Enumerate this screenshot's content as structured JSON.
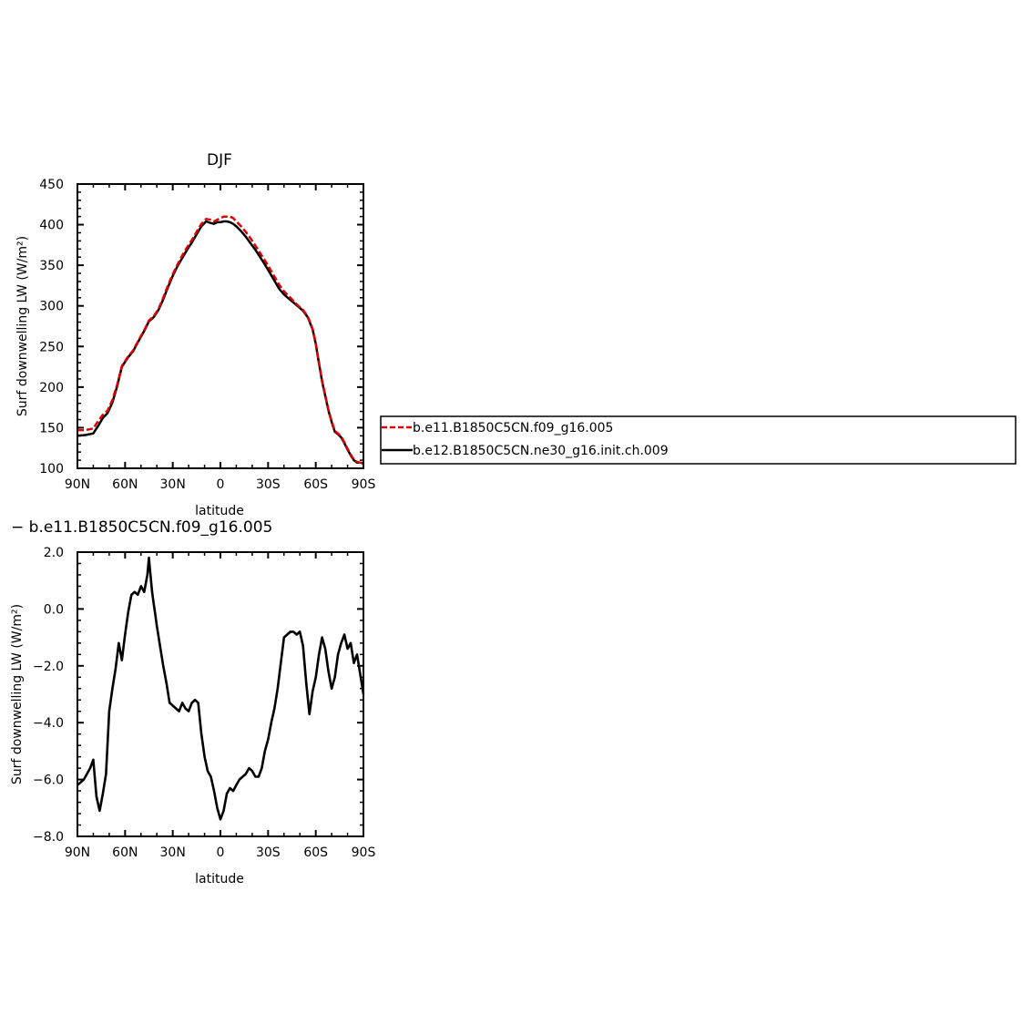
{
  "chart_data": [
    {
      "type": "line",
      "title": "DJF",
      "xlabel": "latitude",
      "ylabel": "Surf downwelling LW (W/m²)",
      "xlim": [
        90,
        -90
      ],
      "ylim": [
        100,
        450
      ],
      "x_ticks": [
        {
          "value": 90,
          "label": "90N"
        },
        {
          "value": 60,
          "label": "60N"
        },
        {
          "value": 30,
          "label": "30N"
        },
        {
          "value": 0,
          "label": "0"
        },
        {
          "value": -30,
          "label": "30S"
        },
        {
          "value": -60,
          "label": "60S"
        },
        {
          "value": -90,
          "label": "90S"
        }
      ],
      "y_ticks": [
        {
          "value": 100,
          "label": "100"
        },
        {
          "value": 150,
          "label": "150"
        },
        {
          "value": 200,
          "label": "200"
        },
        {
          "value": 250,
          "label": "250"
        },
        {
          "value": 300,
          "label": "300"
        },
        {
          "value": 350,
          "label": "350"
        },
        {
          "value": 400,
          "label": "400"
        },
        {
          "value": 450,
          "label": "450"
        }
      ],
      "grid": false,
      "legend_position": "right",
      "series": [
        {
          "name": "b.e11.B1850C5CN.f09_g16.005",
          "color": "#e00000",
          "dash": "dashed",
          "x": [
            90,
            85,
            80,
            77,
            74,
            71,
            68,
            65,
            62,
            58,
            55,
            52,
            48,
            45,
            42,
            39,
            36,
            33,
            30,
            27,
            24,
            21,
            18,
            15,
            12,
            9,
            6,
            4,
            2,
            0,
            -2,
            -4,
            -6,
            -8,
            -10,
            -13,
            -16,
            -19,
            -22,
            -25,
            -28,
            -31,
            -34,
            -37,
            -40,
            -43,
            -46,
            -49,
            -52,
            -55,
            -58,
            -60,
            -62,
            -64,
            -66,
            -68,
            -70,
            -72,
            -74,
            -76,
            -78,
            -80,
            -82,
            -84,
            -86,
            -88,
            -90
          ],
          "y": [
            147,
            147,
            149,
            158,
            166,
            171,
            184,
            203,
            226,
            238,
            245,
            256,
            270,
            282,
            287,
            296,
            310,
            325,
            339,
            351,
            362,
            372,
            381,
            391,
            401,
            407,
            406,
            404,
            406,
            408,
            410,
            410,
            410,
            408,
            404,
            398,
            391,
            383,
            374,
            365,
            356,
            346,
            336,
            326,
            318,
            312,
            306,
            300,
            295,
            287,
            272,
            254,
            230,
            208,
            190,
            172,
            158,
            146,
            143,
            139,
            132,
            124,
            117,
            111,
            108,
            107,
            106
          ]
        },
        {
          "name": "b.e12.B1850C5CN.ne30_g16.init.ch.009",
          "color": "#000000",
          "dash": "solid",
          "x": [
            90,
            85,
            80,
            77,
            74,
            71,
            68,
            65,
            62,
            58,
            55,
            52,
            48,
            45,
            42,
            39,
            36,
            33,
            30,
            27,
            24,
            21,
            18,
            15,
            12,
            9,
            6,
            4,
            2,
            0,
            -2,
            -4,
            -6,
            -8,
            -10,
            -13,
            -16,
            -19,
            -22,
            -25,
            -28,
            -31,
            -34,
            -37,
            -40,
            -43,
            -46,
            -49,
            -52,
            -55,
            -58,
            -60,
            -62,
            -64,
            -66,
            -68,
            -70,
            -72,
            -74,
            -76,
            -78,
            -80,
            -82,
            -84,
            -86,
            -88,
            -90
          ],
          "y": [
            140,
            141,
            143,
            152,
            162,
            168,
            181,
            201,
            225,
            237,
            244,
            255,
            269,
            281,
            286,
            295,
            308,
            323,
            337,
            349,
            359,
            369,
            378,
            388,
            398,
            404,
            402,
            401,
            403,
            403,
            404,
            404,
            403,
            401,
            398,
            392,
            385,
            377,
            369,
            360,
            351,
            341,
            331,
            321,
            314,
            309,
            304,
            299,
            294,
            286,
            271,
            253,
            229,
            207,
            189,
            171,
            157,
            145,
            142,
            138,
            131,
            123,
            116,
            110,
            107,
            107,
            106
          ]
        }
      ]
    },
    {
      "type": "line",
      "title": "− b.e11.B1850C5CN.f09_g16.005",
      "xlabel": "latitude",
      "ylabel": "Surf downwelling LW (W/m²)",
      "xlim": [
        90,
        -90
      ],
      "ylim": [
        -8.0,
        2.0
      ],
      "x_ticks": [
        {
          "value": 90,
          "label": "90N"
        },
        {
          "value": 60,
          "label": "60N"
        },
        {
          "value": 30,
          "label": "30N"
        },
        {
          "value": 0,
          "label": "0"
        },
        {
          "value": -30,
          "label": "30S"
        },
        {
          "value": -60,
          "label": "60S"
        },
        {
          "value": -90,
          "label": "90S"
        }
      ],
      "y_ticks": [
        {
          "value": 2.0,
          "label": "2.0"
        },
        {
          "value": 0.0,
          "label": "0.0"
        },
        {
          "value": -2.0,
          "label": "−2.0"
        },
        {
          "value": -4.0,
          "label": "−4.0"
        },
        {
          "value": -6.0,
          "label": "−6.0"
        },
        {
          "value": -8.0,
          "label": "−8.0"
        }
      ],
      "grid": false,
      "series": [
        {
          "color": "#000000",
          "x": [
            90,
            88,
            86,
            84,
            82,
            80,
            78,
            76,
            74,
            72,
            70,
            68,
            66,
            64,
            62,
            60,
            58,
            56,
            54,
            52,
            50,
            48,
            46,
            45,
            44,
            43,
            42,
            41,
            40,
            38,
            36,
            34,
            32,
            30,
            28,
            26,
            24,
            22,
            20,
            18,
            16,
            14,
            12,
            10,
            8,
            6,
            4,
            2,
            0,
            -2,
            -4,
            -6,
            -8,
            -10,
            -12,
            -14,
            -16,
            -18,
            -20,
            -22,
            -24,
            -26,
            -28,
            -30,
            -32,
            -34,
            -36,
            -38,
            -40,
            -42,
            -44,
            -46,
            -48,
            -50,
            -52,
            -54,
            -56,
            -58,
            -60,
            -62,
            -64,
            -66,
            -68,
            -70,
            -72,
            -74,
            -76,
            -78,
            -80,
            -82,
            -84,
            -86,
            -88,
            -90
          ],
          "y": [
            -6.2,
            -6.1,
            -6.0,
            -5.8,
            -5.6,
            -5.3,
            -6.6,
            -7.1,
            -6.5,
            -5.8,
            -3.6,
            -2.8,
            -2.1,
            -1.2,
            -1.8,
            -0.9,
            -0.1,
            0.5,
            0.6,
            0.5,
            0.8,
            0.6,
            1.2,
            1.8,
            1.2,
            0.6,
            0.2,
            -0.2,
            -0.6,
            -1.3,
            -2.0,
            -2.6,
            -3.3,
            -3.4,
            -3.5,
            -3.6,
            -3.3,
            -3.5,
            -3.6,
            -3.3,
            -3.2,
            -3.3,
            -4.4,
            -5.2,
            -5.7,
            -5.9,
            -6.4,
            -7.0,
            -7.4,
            -7.1,
            -6.5,
            -6.3,
            -6.4,
            -6.2,
            -6.0,
            -5.9,
            -5.8,
            -5.6,
            -5.7,
            -5.9,
            -5.9,
            -5.6,
            -5.0,
            -4.6,
            -4.0,
            -3.5,
            -2.8,
            -1.9,
            -1.0,
            -0.9,
            -0.8,
            -0.8,
            -0.9,
            -0.8,
            -1.3,
            -2.6,
            -3.7,
            -2.9,
            -2.4,
            -1.6,
            -1.0,
            -1.4,
            -2.2,
            -2.8,
            -2.4,
            -1.6,
            -1.2,
            -0.9,
            -1.4,
            -1.2,
            -1.9,
            -1.6,
            -2.3,
            -3.0
          ]
        }
      ]
    }
  ]
}
